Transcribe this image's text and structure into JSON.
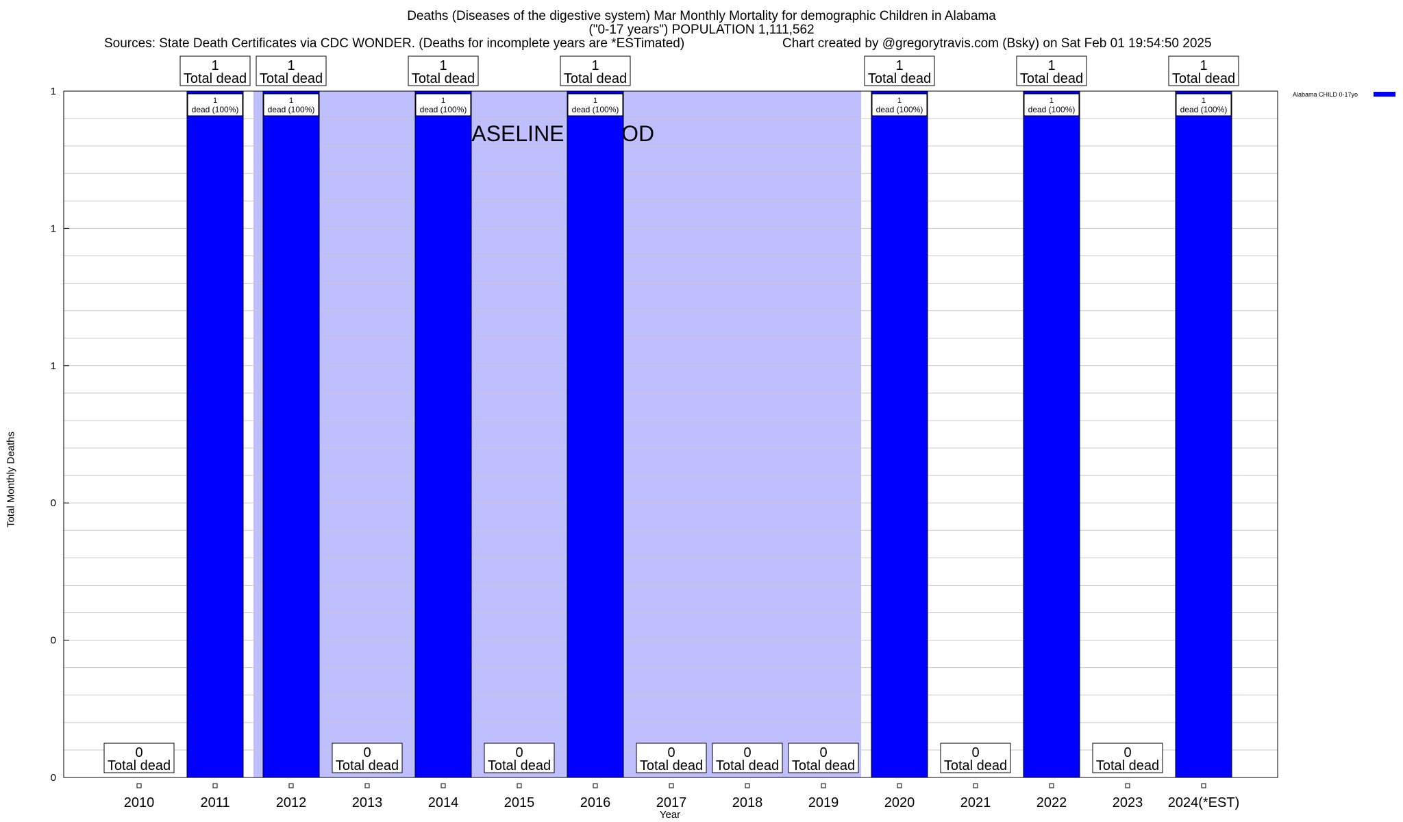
{
  "header": {
    "title_line1": "Deaths (Diseases of the digestive system) Mar Monthly Mortality for demographic Children in Alabama",
    "title_line2": "(\"0-17 years\") POPULATION 1,111,562",
    "sources": "Sources: State Death Certificates via CDC WONDER. (Deaths for incomplete years are *ESTimated)",
    "credit": "Chart created by @gregorytravis.com (Bsky) on Sat Feb 01 19:54:50 2025"
  },
  "chart_data": {
    "type": "bar",
    "categories": [
      "2010",
      "2011",
      "2012",
      "2013",
      "2014",
      "2015",
      "2016",
      "2017",
      "2018",
      "2019",
      "2020",
      "2021",
      "2022",
      "2023",
      "2024(*EST)"
    ],
    "series": [
      {
        "name": "Alabama CHILD 0-17yo",
        "values": [
          0,
          1,
          1,
          0,
          1,
          0,
          1,
          0,
          0,
          0,
          1,
          0,
          1,
          0,
          1
        ],
        "color": "#0000ff"
      }
    ],
    "total_labels": [
      "0",
      "1",
      "1",
      "0",
      "1",
      "0",
      "1",
      "0",
      "0",
      "0",
      "1",
      "0",
      "1",
      "0",
      "1"
    ],
    "total_suffix": "Total dead",
    "bar_label_count": "1",
    "bar_label_pct": "dead (100%)",
    "xlabel": "Year",
    "ylabel": "Total Monthly Deaths",
    "ylim": [
      0,
      1
    ],
    "ytick_values": [
      0,
      0.2,
      0.4,
      0.6,
      0.8,
      1
    ],
    "ytick_labels": [
      "0",
      "0",
      "0",
      "1",
      "1",
      "1"
    ],
    "grid": true,
    "legend_position": "top-right",
    "baseline": {
      "label": "BASELINE PERIOD",
      "start": "2012",
      "end": "2019",
      "color": "#bfbfff"
    },
    "colors": {
      "bar": "#0000ff",
      "baseline_fill": "#bfbfff",
      "grid": "#c8c8c8"
    }
  }
}
